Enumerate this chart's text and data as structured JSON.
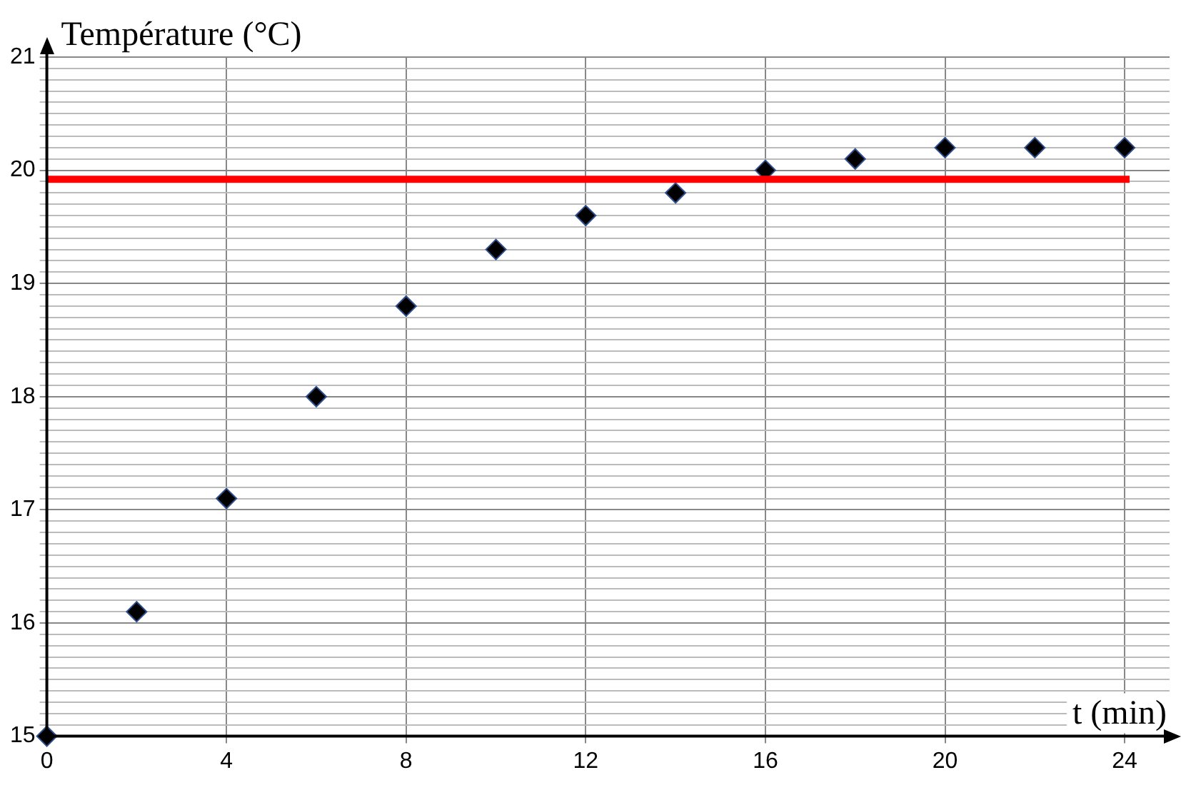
{
  "chart_data": {
    "type": "scatter",
    "xlabel": "t (min)",
    "ylabel": "Température (°C)",
    "x": [
      0,
      2,
      4,
      6,
      8,
      10,
      12,
      14,
      16,
      18,
      20,
      22,
      24
    ],
    "series": [
      {
        "color": "#000000",
        "values": [
          15.0,
          16.1,
          17.1,
          18.0,
          18.8,
          19.3,
          19.6,
          19.8,
          20.0,
          20.1,
          20.2,
          20.2,
          20.2
        ]
      }
    ],
    "xlim": [
      0,
      25
    ],
    "xticks": [
      0,
      4,
      8,
      12,
      16,
      20,
      24
    ],
    "ylim": [
      15,
      21
    ],
    "yticks": [
      15,
      {
        "value": 15.1,
        "label": null
      },
      {
        "value": 15.2,
        "label": null
      },
      {
        "value": 15.3,
        "label": null
      },
      {
        "value": 15.4,
        "label": null
      },
      {
        "value": 15.5,
        "label": null
      },
      {
        "value": 15.6,
        "label": null
      },
      {
        "value": 15.7,
        "label": null
      },
      {
        "value": 15.8,
        "label": null
      },
      {
        "value": 15.9,
        "label": null
      },
      16,
      {
        "value": 16.1,
        "label": null
      },
      {
        "value": 16.2,
        "label": null
      },
      {
        "value": 16.3,
        "label": null
      },
      {
        "value": 16.4,
        "label": null
      },
      {
        "value": 16.5,
        "label": null
      },
      {
        "value": 16.6,
        "label": null
      },
      {
        "value": 16.7,
        "label": null
      },
      {
        "value": 16.8,
        "label": null
      },
      {
        "value": 16.9,
        "label": null
      },
      17,
      {
        "value": 17.1,
        "label": null
      },
      {
        "value": 17.2,
        "label": null
      },
      {
        "value": 17.3,
        "label": null
      },
      {
        "value": 17.4,
        "label": null
      },
      {
        "value": 17.5,
        "label": null
      },
      {
        "value": 17.6,
        "label": null
      },
      {
        "value": 17.7,
        "label": null
      },
      {
        "value": 17.8,
        "label": null
      },
      {
        "value": 17.9,
        "label": null
      },
      18,
      {
        "value": 18.1,
        "label": null
      },
      {
        "value": 18.2,
        "label": null
      },
      {
        "value": 18.3,
        "label": null
      },
      {
        "value": 18.4,
        "label": null
      },
      {
        "value": 18.5,
        "label": null
      },
      {
        "value": 18.6,
        "label": null
      },
      {
        "value": 18.7,
        "label": null
      },
      {
        "value": 18.8,
        "label": null
      },
      {
        "value": 18.9,
        "label": null
      },
      19,
      {
        "value": 19.1,
        "label": null
      },
      {
        "value": 19.2,
        "label": null
      },
      {
        "value": 19.3,
        "label": null
      },
      {
        "value": 19.4,
        "label": null
      },
      {
        "value": 19.5,
        "label": null
      },
      {
        "value": 19.6,
        "label": null
      },
      {
        "value": 19.7,
        "label": null
      },
      {
        "value": 19.8,
        "label": null
      },
      {
        "value": 19.9,
        "label": null
      },
      20,
      {
        "value": 20.1,
        "label": null
      },
      {
        "value": 20.2,
        "label": null
      },
      {
        "value": 20.3,
        "label": null
      },
      {
        "value": 20.4,
        "label": null
      },
      {
        "value": 20.5,
        "label": null
      },
      {
        "value": 20.6,
        "label": null
      },
      {
        "value": 20.7,
        "label": null
      },
      {
        "value": 20.8,
        "label": null
      },
      {
        "value": 20.9,
        "label": null
      },
      21
    ],
    "ref_lines": [
      {
        "axis": "y",
        "value": 19.92,
        "color": "#ff0000"
      }
    ],
    "grid": true,
    "marker": "diamond",
    "legend": false
  }
}
